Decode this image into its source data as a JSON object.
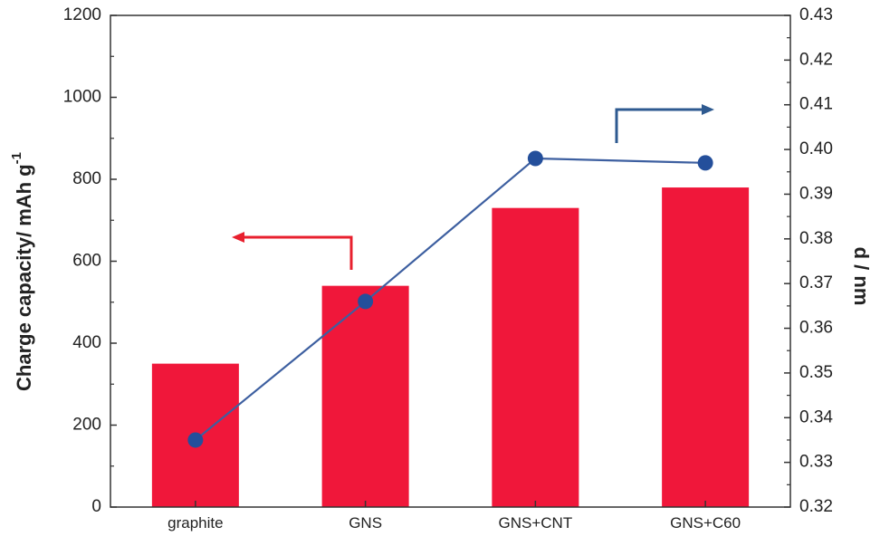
{
  "chart_data": {
    "type": "bar",
    "title": "",
    "categories": [
      "graphite",
      "GNS",
      "GNS+CNT",
      "GNS+C60"
    ],
    "series": [
      {
        "axis": "left",
        "type": "bar",
        "color": "#f0173a",
        "values": [
          350,
          540,
          730,
          780
        ]
      },
      {
        "axis": "right",
        "type": "line",
        "color": "#3d5fa0",
        "marker_color": "#244f9b",
        "values": [
          0.335,
          0.366,
          0.398,
          0.397
        ]
      }
    ],
    "ylabel": "Charge capacity/ mAh g",
    "ylabel_superscript": "-1",
    "ylim": [
      0,
      1200
    ],
    "yticks": [
      0,
      200,
      400,
      600,
      800,
      1000,
      1200
    ],
    "y2label": "d / nm",
    "y2lim": [
      0.32,
      0.43
    ],
    "y2ticks": [
      "0.32",
      "0.33",
      "0.34",
      "0.35",
      "0.36",
      "0.37",
      "0.38",
      "0.39",
      "0.40",
      "0.41",
      "0.42",
      "0.43"
    ],
    "annotations": [
      {
        "kind": "arrow",
        "points_to": "left-axis",
        "color": "#e8202e"
      },
      {
        "kind": "arrow",
        "points_to": "right-axis",
        "color": "#2e5a90"
      }
    ],
    "grid": false,
    "legend": "none"
  }
}
